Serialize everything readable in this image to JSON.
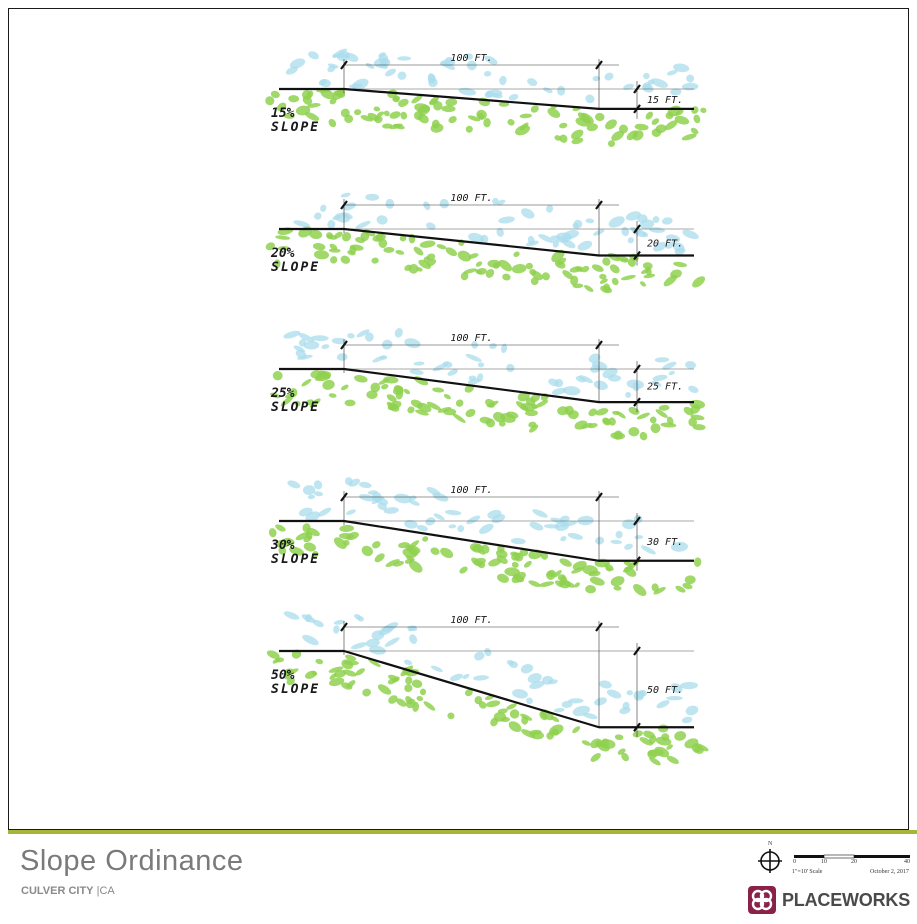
{
  "footer": {
    "title": "Slope Ordinance",
    "city": "CULVER CITY",
    "separator": "|",
    "state": "CA",
    "logo": "PLACEWORKS",
    "accent_color": "#a9b53a",
    "logo_color": "#8a2148"
  },
  "scale_bar": {
    "north": "N",
    "ticks": [
      "0",
      "10",
      "20",
      "40"
    ],
    "scale_text": "1\"=10' Scale",
    "date": "October 2, 2017"
  },
  "diagram": {
    "grass_color": "#8fd14f",
    "sky_color": "#a9dcec",
    "slopes": [
      {
        "pct": 15,
        "run_label": "100 FT.",
        "rise_label": "15 FT.",
        "slope_line1": "15%",
        "slope_line2": "SLOPE"
      },
      {
        "pct": 20,
        "run_label": "100 FT.",
        "rise_label": "20 FT.",
        "slope_line1": "20%",
        "slope_line2": "SLOPE"
      },
      {
        "pct": 25,
        "run_label": "100 FT.",
        "rise_label": "25 FT.",
        "slope_line1": "25%",
        "slope_line2": "SLOPE"
      },
      {
        "pct": 30,
        "run_label": "100 FT.",
        "rise_label": "30 FT.",
        "slope_line1": "30%",
        "slope_line2": "SLOPE"
      },
      {
        "pct": 50,
        "run_label": "100 FT.",
        "rise_label": "50 FT.",
        "slope_line1": "50%",
        "slope_line2": "SLOPE"
      }
    ]
  }
}
